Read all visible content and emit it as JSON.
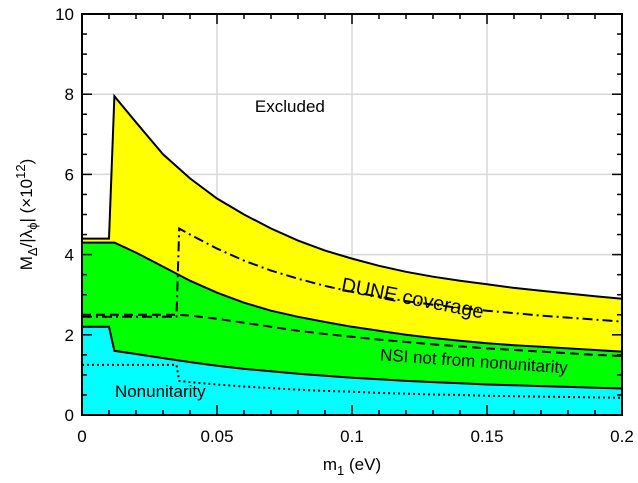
{
  "chart_data": {
    "type": "area",
    "xlabel": "m",
    "xlabel_sub": "1",
    "xlabel_unit": " (eV)",
    "ylabel_parts": {
      "a": "M",
      "a_sub": "Δ",
      "b": "/|λ",
      "b_sub": "ϕ",
      "c": "| (×10",
      "c_sup": "12",
      "d": ")"
    },
    "xlim": [
      0,
      0.2
    ],
    "ylim": [
      0,
      10
    ],
    "xticks": [
      0,
      0.05,
      0.1,
      0.15,
      0.2
    ],
    "xtick_labels": [
      "0",
      "0.05",
      "0.1",
      "0.15",
      "0.2"
    ],
    "yticks": [
      0,
      2,
      4,
      6,
      8,
      10
    ],
    "ytick_labels": [
      "0",
      "2",
      "4",
      "6",
      "8",
      "10"
    ],
    "grid": true,
    "colors": {
      "excluded": "#ffffff",
      "dune": "#ffff00",
      "nsi": "#00ff00",
      "nonunitarity": "#00ffff",
      "grid": "#d8d8d8",
      "line": "#000000"
    },
    "x": [
      0,
      0.01,
      0.012,
      0.02,
      0.03,
      0.04,
      0.05,
      0.06,
      0.07,
      0.08,
      0.09,
      0.1,
      0.11,
      0.12,
      0.13,
      0.14,
      0.15,
      0.16,
      0.17,
      0.18,
      0.19,
      0.2
    ],
    "upper_bound": [
      4.4,
      4.4,
      7.95,
      7.3,
      6.5,
      5.9,
      5.4,
      5.0,
      4.65,
      4.35,
      4.1,
      3.9,
      3.72,
      3.57,
      3.45,
      3.35,
      3.26,
      3.17,
      3.1,
      3.03,
      2.96,
      2.9
    ],
    "dune_lower": [
      4.3,
      4.3,
      4.3,
      4.05,
      3.7,
      3.35,
      3.05,
      2.8,
      2.6,
      2.45,
      2.32,
      2.2,
      2.1,
      2.0,
      1.92,
      1.85,
      1.79,
      1.74,
      1.7,
      1.66,
      1.62,
      1.58
    ],
    "nsi_lower": [
      2.2,
      2.2,
      1.6,
      1.52,
      1.42,
      1.32,
      1.23,
      1.15,
      1.09,
      1.03,
      0.98,
      0.93,
      0.89,
      0.85,
      0.82,
      0.79,
      0.76,
      0.74,
      0.72,
      0.7,
      0.68,
      0.66
    ],
    "dashdot": {
      "x": [
        0,
        0.035,
        0.036,
        0.04,
        0.05,
        0.06,
        0.07,
        0.08,
        0.09,
        0.1,
        0.11,
        0.12,
        0.13,
        0.14,
        0.15,
        0.16,
        0.17,
        0.18,
        0.19,
        0.2
      ],
      "y": [
        2.45,
        2.45,
        4.65,
        4.5,
        4.15,
        3.85,
        3.6,
        3.4,
        3.22,
        3.07,
        2.95,
        2.84,
        2.75,
        2.67,
        2.6,
        2.54,
        2.48,
        2.43,
        2.38,
        2.33
      ]
    },
    "dashed": {
      "x": [
        0,
        0.035,
        0.04,
        0.05,
        0.06,
        0.07,
        0.08,
        0.09,
        0.1,
        0.11,
        0.12,
        0.13,
        0.14,
        0.15,
        0.16,
        0.17,
        0.18,
        0.19,
        0.2
      ],
      "y": [
        2.5,
        2.5,
        2.48,
        2.4,
        2.3,
        2.2,
        2.1,
        2.02,
        1.95,
        1.88,
        1.82,
        1.76,
        1.71,
        1.66,
        1.62,
        1.58,
        1.54,
        1.5,
        1.47
      ]
    },
    "dotted": {
      "x": [
        0,
        0.035,
        0.036,
        0.04,
        0.05,
        0.06,
        0.07,
        0.08,
        0.09,
        0.1,
        0.11,
        0.12,
        0.13,
        0.14,
        0.15,
        0.16,
        0.17,
        0.18,
        0.19,
        0.2
      ],
      "y": [
        1.25,
        1.25,
        0.85,
        0.82,
        0.76,
        0.71,
        0.67,
        0.63,
        0.6,
        0.58,
        0.55,
        0.53,
        0.51,
        0.5,
        0.48,
        0.47,
        0.46,
        0.45,
        0.44,
        0.43
      ]
    },
    "annotations": {
      "excluded": {
        "text": "Excluded",
        "x": 0.077,
        "y": 7.55
      },
      "dune": {
        "text": "DUNE coverage",
        "x": 0.122,
        "y": 2.75,
        "rotate": 11
      },
      "nsi": {
        "text": "NSI not from nonunitarity",
        "x": 0.145,
        "y": 1.2,
        "rotate": 4
      },
      "nonunit": {
        "text": "Nonunitarity",
        "x": 0.029,
        "y": 0.45,
        "rotate": 0
      }
    }
  }
}
